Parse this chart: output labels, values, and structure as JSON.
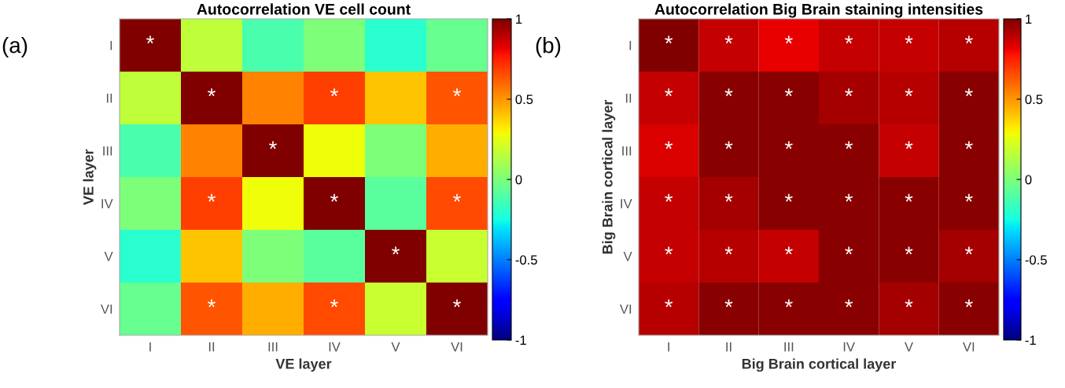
{
  "chart_data": [
    {
      "type": "heatmap",
      "title": "Autocorrelation VE cell count",
      "xlabel": "VE layer",
      "ylabel": "VE layer",
      "categories": [
        "I",
        "II",
        "III",
        "IV",
        "V",
        "VI"
      ],
      "y_categories": [
        "I",
        "II",
        "III",
        "IV",
        "V",
        "VI"
      ],
      "cells": [
        [
          1,
          0.16,
          -0.12,
          0,
          -0.2,
          -0.05
        ],
        [
          0.16,
          1,
          0.54,
          0.68,
          0.4,
          0.64
        ],
        [
          -0.12,
          0.54,
          1,
          0.28,
          0,
          0.45
        ],
        [
          0,
          0.68,
          0.28,
          1,
          -0.08,
          0.66
        ],
        [
          -0.2,
          0.4,
          0,
          -0.08,
          1,
          0.18
        ],
        [
          -0.05,
          0.64,
          0.45,
          0.66,
          0.18,
          1
        ]
      ],
      "cell_labels": [
        [
          "*",
          null,
          null,
          null,
          null,
          null
        ],
        [
          null,
          "*",
          null,
          "*",
          null,
          "*"
        ],
        [
          null,
          null,
          "*",
          null,
          null,
          null
        ],
        [
          null,
          "*",
          null,
          "*",
          null,
          "*"
        ],
        [
          null,
          null,
          null,
          null,
          "*",
          null
        ],
        [
          null,
          "*",
          null,
          "*",
          null,
          "*"
        ]
      ],
      "clim": [
        -1,
        1
      ],
      "cticks": [
        -1,
        -0.5,
        0,
        0.5,
        1
      ],
      "annotations": [
        "(a)"
      ]
    },
    {
      "type": "heatmap",
      "title": "Autocorrelation Big Brain staining intensities",
      "xlabel": "Big Brain cortical layer",
      "ylabel": "Big Brain cortical layer",
      "categories": [
        "I",
        "II",
        "III",
        "IV",
        "V",
        "VI"
      ],
      "y_categories": [
        "I",
        "II",
        "III",
        "IV",
        "V",
        "VI"
      ],
      "cells": [
        [
          1,
          0.88,
          0.82,
          0.88,
          0.88,
          0.9
        ],
        [
          0.88,
          0.98,
          0.98,
          0.93,
          0.9,
          0.98
        ],
        [
          0.84,
          0.98,
          0.98,
          0.98,
          0.88,
          0.98
        ],
        [
          0.88,
          0.93,
          0.98,
          0.98,
          0.98,
          0.98
        ],
        [
          0.88,
          0.9,
          0.88,
          0.98,
          0.98,
          0.93
        ],
        [
          0.9,
          0.98,
          0.98,
          0.98,
          0.93,
          0.98
        ]
      ],
      "cell_labels": [
        [
          "*",
          "*",
          "*",
          "*",
          "*",
          "*"
        ],
        [
          "*",
          "*",
          "*",
          "*",
          "*",
          "*"
        ],
        [
          "*",
          "*",
          "*",
          "*",
          "*",
          "*"
        ],
        [
          "*",
          "*",
          "*",
          "*",
          "*",
          "*"
        ],
        [
          "*",
          "*",
          "*",
          "*",
          "*",
          "*"
        ],
        [
          "*",
          "*",
          "*",
          "*",
          "*",
          "*"
        ]
      ],
      "clim": [
        -1,
        1
      ],
      "cticks": [
        -1,
        -0.5,
        0,
        0.5,
        1
      ],
      "annotations": [
        "(b)"
      ]
    }
  ]
}
